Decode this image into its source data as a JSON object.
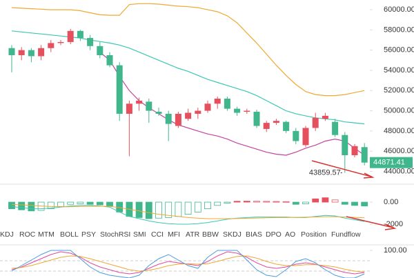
{
  "chart_data": [
    {
      "type": "candlestick",
      "ohlc": {
        "open": [
          56200,
          55500,
          56000,
          55400,
          56200,
          56700,
          56800,
          57900,
          57200,
          56400,
          55500,
          54500,
          49700,
          50700,
          50900,
          49900,
          49700,
          48500,
          49200,
          49700,
          50000,
          50700,
          51200,
          50200,
          49900,
          49900,
          48200,
          48800,
          48900,
          48000,
          46600,
          48300,
          49200,
          48900,
          47600,
          45600,
          46400
        ],
        "high": [
          56500,
          56300,
          56200,
          56500,
          57000,
          57000,
          58100,
          58000,
          57500,
          56800,
          55800,
          54800,
          51000,
          51300,
          51200,
          50300,
          50000,
          49900,
          50200,
          50300,
          51000,
          51400,
          51400,
          50400,
          50200,
          50100,
          49000,
          49200,
          49000,
          48300,
          48500,
          49800,
          49800,
          49200,
          47900,
          46700,
          46800
        ],
        "low": [
          53800,
          55000,
          54800,
          55000,
          55800,
          56500,
          56600,
          56900,
          56000,
          55200,
          54300,
          49000,
          45500,
          50000,
          48800,
          49500,
          47000,
          48300,
          49000,
          49200,
          49800,
          50200,
          50000,
          49500,
          49700,
          48300,
          47900,
          48600,
          47800,
          46700,
          46400,
          48000,
          49000,
          47400,
          43859.57,
          45400,
          44600
        ],
        "close": [
          55500,
          56000,
          55400,
          56200,
          56700,
          56800,
          57900,
          57200,
          56400,
          55500,
          54500,
          49700,
          50700,
          51000,
          50000,
          49700,
          48700,
          49700,
          49800,
          50000,
          50700,
          51200,
          50200,
          49800,
          50000,
          48500,
          48800,
          49000,
          48000,
          47000,
          48300,
          49300,
          49500,
          47600,
          45600,
          46500,
          44871.41
        ]
      },
      "up_color": "#e5505f",
      "down_color": "#3fb68b",
      "overlays": [
        {
          "color": "#f0a830",
          "values": [
            60200,
            60150,
            60100,
            60050,
            60000,
            60000,
            60000,
            59900,
            59700,
            59500,
            59450,
            59450,
            60500,
            60600,
            60600,
            60550,
            60450,
            60350,
            60300,
            60200,
            60000,
            59800,
            59400,
            58700,
            57700,
            56700,
            55600,
            54500,
            53500,
            52600,
            51900,
            51600,
            51500,
            51500,
            51600,
            51800,
            52000
          ]
        },
        {
          "color": "#3cc7b4",
          "values": [
            57900,
            57800,
            57700,
            57600,
            57500,
            57400,
            57300,
            57200,
            57000,
            56850,
            56700,
            56500,
            56200,
            55800,
            55400,
            55000,
            54600,
            54200,
            53900,
            53500,
            53100,
            52800,
            52500,
            52200,
            51900,
            51500,
            51000,
            50500,
            50000,
            49700,
            49500,
            49300,
            49200,
            49100,
            48900,
            48800,
            48700
          ]
        },
        {
          "color": "#c2449e",
          "values": [
            null,
            null,
            null,
            null,
            null,
            null,
            null,
            null,
            null,
            55800,
            55000,
            53400,
            52000,
            51000,
            50300,
            49700,
            49100,
            48600,
            48300,
            48000,
            47700,
            47500,
            47200,
            46800,
            46500,
            46200,
            45900,
            45700,
            45600,
            45900,
            46300,
            46600,
            47000,
            47200,
            47000,
            46300,
            45600
          ]
        }
      ],
      "ylim": [
        42870,
        60960
      ],
      "yticks": [
        {
          "value": 60000,
          "label": "60000.00"
        },
        {
          "value": 58000,
          "label": "58000.00"
        },
        {
          "value": 56000,
          "label": "56000.00"
        },
        {
          "value": 54000,
          "label": "54000.00"
        },
        {
          "value": 52000,
          "label": "52000.00"
        },
        {
          "value": 50000,
          "label": "50000.00"
        },
        {
          "value": 48000,
          "label": "48000.00"
        },
        {
          "value": 46000,
          "label": "46000.00"
        },
        {
          "value": 44000,
          "label": "44000.00"
        }
      ]
    },
    {
      "type": "macd",
      "values": [
        -600,
        -700,
        -800,
        -750,
        -600,
        -400,
        -200,
        -150,
        -200,
        -250,
        -350,
        -900,
        -1300,
        -1400,
        -1500,
        -1450,
        -1400,
        -1300,
        -1100,
        -900,
        -600,
        -300,
        -100,
        80,
        90,
        80,
        70,
        60,
        50,
        -200,
        -150,
        300,
        400,
        200,
        -200,
        -300,
        -350
      ],
      "up_color": "#e5505f",
      "down_color": "#3fb68b",
      "lines": [
        {
          "color": "#3cc7b4",
          "values": [
            -400,
            -500,
            -600,
            -600,
            -550,
            -450,
            -350,
            -300,
            -300,
            -350,
            -450,
            -900,
            -1300,
            -1500,
            -1700,
            -1850,
            -1950,
            -2000,
            -2000,
            -1950,
            -1850,
            -1700,
            -1550,
            -1450,
            -1400,
            -1350,
            -1350,
            -1350,
            -1350,
            -1400,
            -1400,
            -1300,
            -1200,
            -1250,
            -1450,
            -1600,
            -1750
          ]
        },
        {
          "color": "#f0a830",
          "values": [
            -200,
            -250,
            -300,
            -350,
            -400,
            -420,
            -420,
            -400,
            -380,
            -370,
            -380,
            -500,
            -650,
            -800,
            -950,
            -1100,
            -1200,
            -1300,
            -1400,
            -1450,
            -1500,
            -1500,
            -1500,
            -1480,
            -1460,
            -1440,
            -1420,
            -1400,
            -1400,
            -1380,
            -1360,
            -1340,
            -1320,
            -1320,
            -1340,
            -1380,
            -1420
          ]
        }
      ],
      "ylim": [
        -2625,
        1440
      ],
      "yticks": [
        {
          "value": 0,
          "label": "0.00"
        },
        {
          "value": -2000,
          "label": "-2000"
        }
      ]
    },
    {
      "type": "line",
      "series": [
        {
          "color": "#e0479e",
          "values": [
            30,
            40,
            55,
            70,
            85,
            95,
            90,
            75,
            55,
            40,
            30,
            20,
            15,
            20,
            35,
            50,
            60,
            55,
            50,
            45,
            60,
            80,
            95,
            90,
            75,
            55,
            40,
            35,
            40,
            50,
            55,
            50,
            40,
            30,
            20,
            15,
            20
          ]
        },
        {
          "color": "#f0a830",
          "values": [
            35,
            38,
            45,
            55,
            65,
            75,
            80,
            78,
            70,
            60,
            50,
            40,
            30,
            25,
            28,
            35,
            45,
            50,
            52,
            50,
            52,
            60,
            70,
            78,
            80,
            72,
            60,
            50,
            45,
            45,
            48,
            48,
            45,
            40,
            32,
            25,
            22
          ]
        },
        {
          "color": "#4a9be0",
          "values": [
            25,
            45,
            65,
            85,
            100,
            100,
            100,
            70,
            40,
            20,
            10,
            5,
            0,
            10,
            45,
            70,
            85,
            65,
            45,
            35,
            75,
            100,
            100,
            100,
            65,
            30,
            10,
            5,
            30,
            60,
            70,
            55,
            30,
            10,
            0,
            0,
            15
          ]
        }
      ],
      "ylim": [
        0,
        120
      ],
      "yticks": [
        {
          "value": 100,
          "label": "100.00"
        }
      ]
    }
  ],
  "tabs": [
    "KDJ",
    "ROC",
    "MTM",
    "BOLL",
    "PSY",
    "StochRSI",
    "SMI",
    "CCI",
    "MFI",
    "ATR",
    "BBW",
    "SKDJ",
    "BIAS",
    "DPO",
    "AO",
    "Position",
    "Fundflow"
  ]
}
